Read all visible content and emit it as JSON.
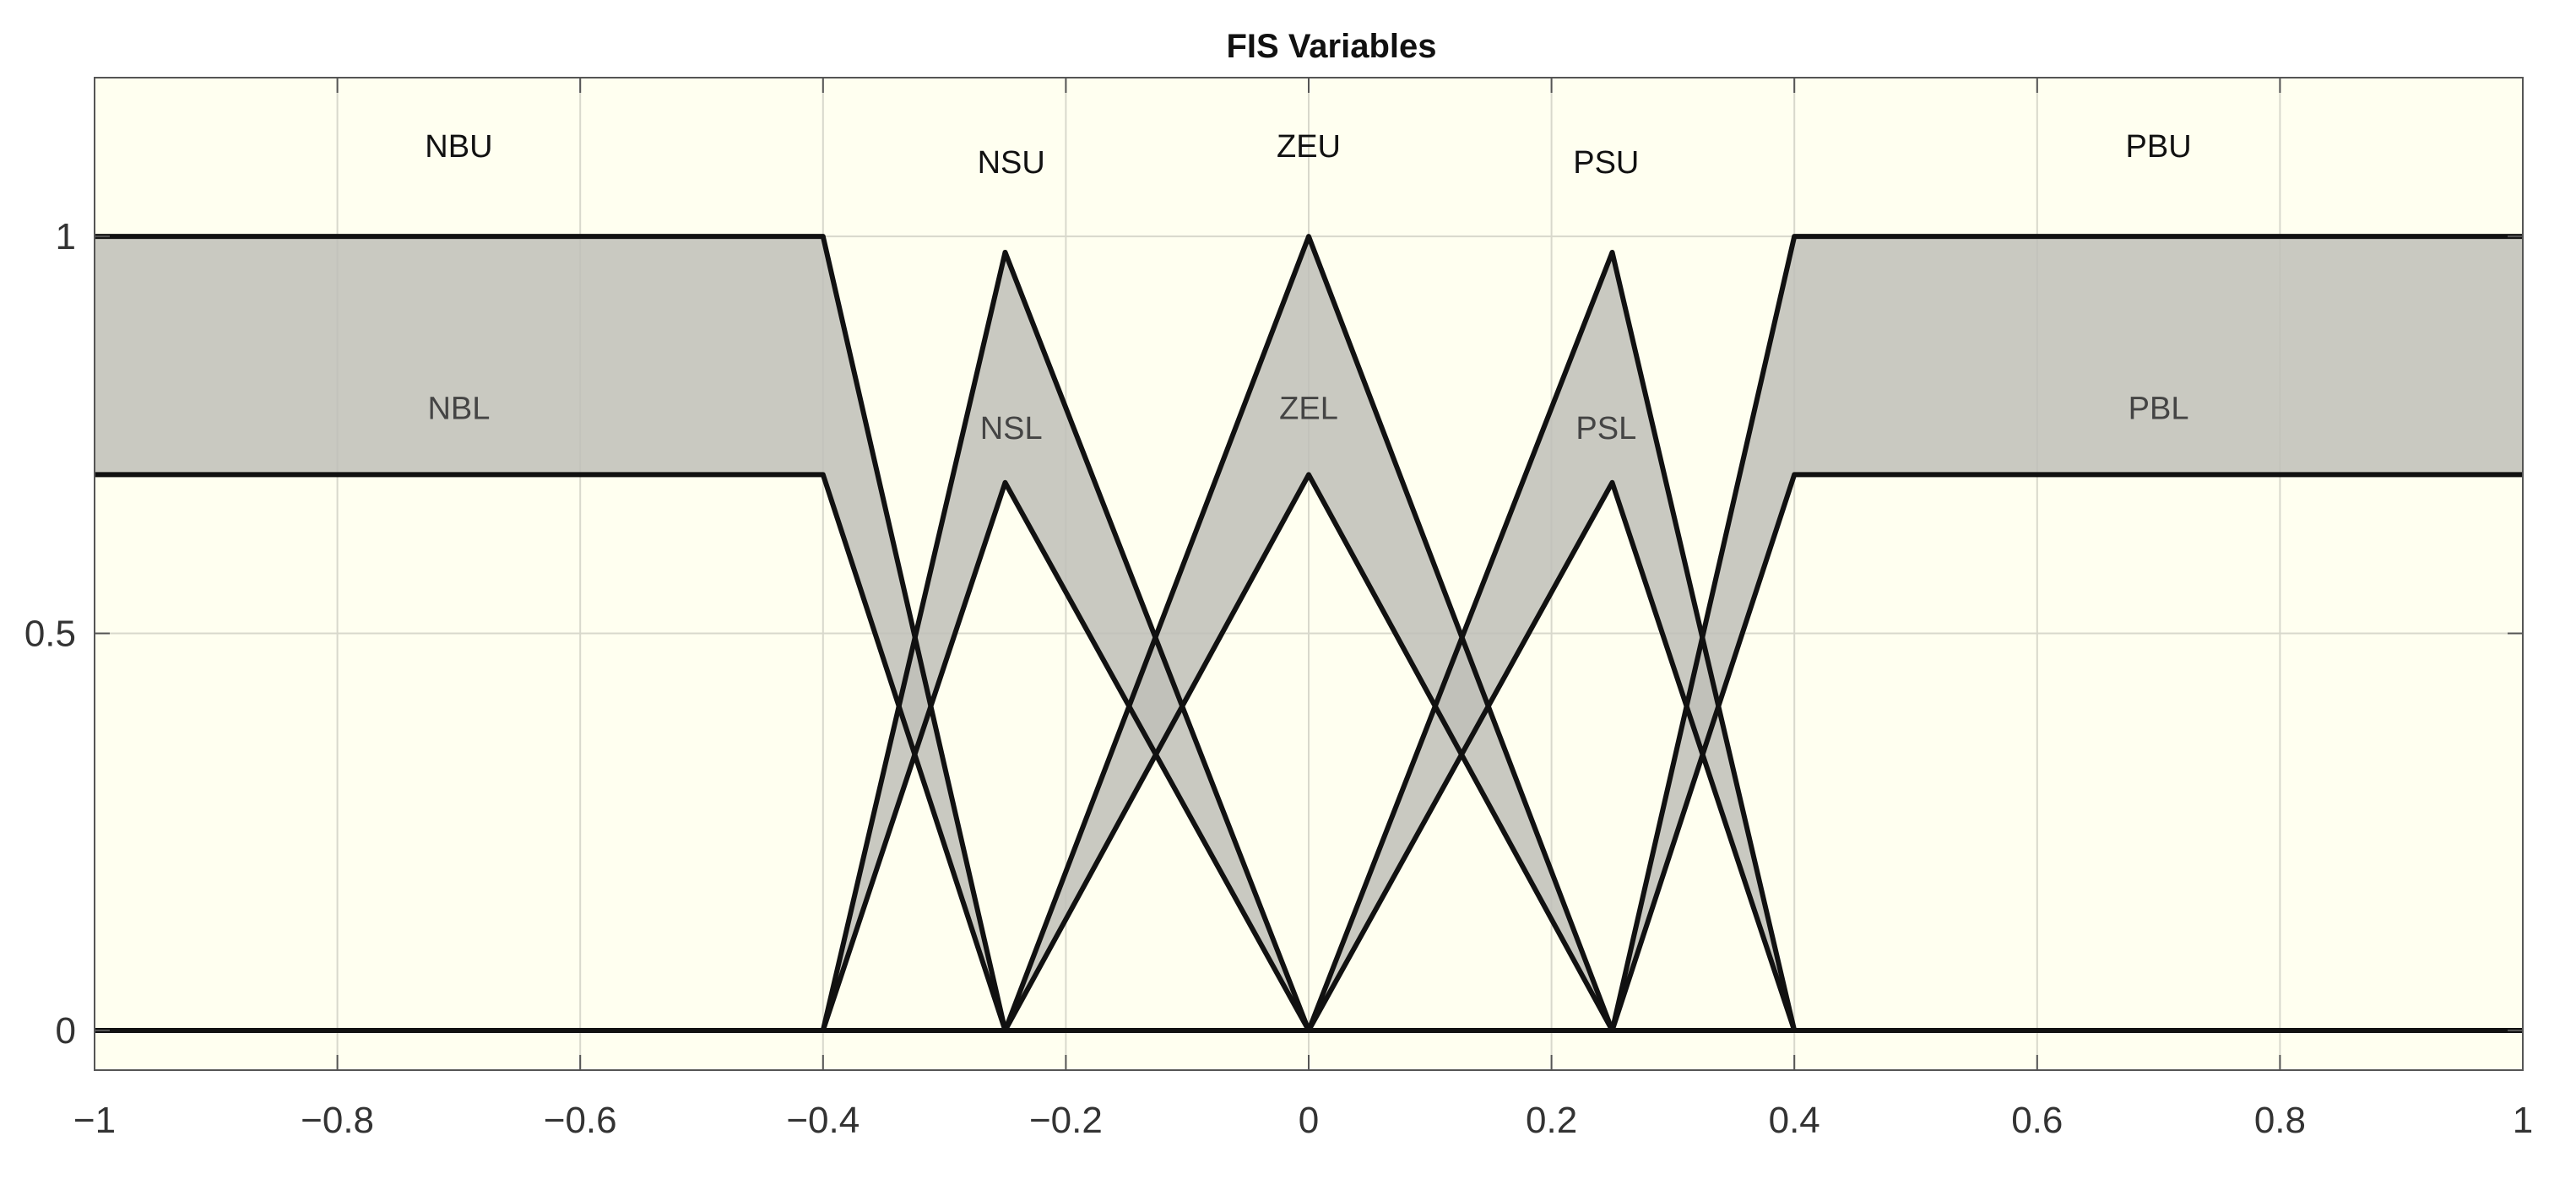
{
  "chart_data": {
    "type": "line",
    "title": "FIS Variables",
    "xlabel": "",
    "ylabel": "",
    "xlim": [
      -1,
      1
    ],
    "ylim": [
      -0.05,
      1.2
    ],
    "grid": true,
    "x_ticks": [
      {
        "value": -1,
        "label": "−1"
      },
      {
        "value": -0.8,
        "label": "−0.8"
      },
      {
        "value": -0.6,
        "label": "−0.6"
      },
      {
        "value": -0.4,
        "label": "−0.4"
      },
      {
        "value": -0.2,
        "label": "−0.2"
      },
      {
        "value": 0,
        "label": "0"
      },
      {
        "value": 0.2,
        "label": "0.2"
      },
      {
        "value": 0.4,
        "label": "0.4"
      },
      {
        "value": 0.6,
        "label": "0.6"
      },
      {
        "value": 0.8,
        "label": "0.8"
      },
      {
        "value": 1,
        "label": "1"
      }
    ],
    "y_ticks": [
      {
        "value": 0,
        "label": "0"
      },
      {
        "value": 0.5,
        "label": "0.5"
      },
      {
        "value": 1,
        "label": "1"
      }
    ],
    "colors": {
      "background": "#fffff0",
      "fill": "#c0c0b8",
      "line": "#111111",
      "grid": "#d8d8cc"
    },
    "series": [
      {
        "upper_label": "NBU",
        "lower_label": "NBL",
        "upper": [
          [
            -1,
            1
          ],
          [
            -0.4,
            1
          ],
          [
            -0.25,
            0
          ]
        ],
        "lower": [
          [
            -1,
            0.7
          ],
          [
            -0.4,
            0.7
          ],
          [
            -0.25,
            0
          ]
        ],
        "upper_label_pos": [
          -0.7,
          1.1
        ],
        "lower_label_pos": [
          -0.7,
          0.77
        ]
      },
      {
        "upper_label": "NSU",
        "lower_label": "NSL",
        "upper": [
          [
            -0.4,
            0
          ],
          [
            -0.25,
            0.98
          ],
          [
            0,
            0
          ]
        ],
        "lower": [
          [
            -0.4,
            0
          ],
          [
            -0.25,
            0.69
          ],
          [
            0,
            0
          ]
        ],
        "upper_label_pos": [
          -0.245,
          1.08
        ],
        "lower_label_pos": [
          -0.245,
          0.745
        ]
      },
      {
        "upper_label": "ZEU",
        "lower_label": "ZEL",
        "upper": [
          [
            -0.25,
            0
          ],
          [
            0,
            1
          ],
          [
            0.25,
            0
          ]
        ],
        "lower": [
          [
            -0.25,
            0
          ],
          [
            0,
            0.7
          ],
          [
            0.25,
            0
          ]
        ],
        "upper_label_pos": [
          0,
          1.1
        ],
        "lower_label_pos": [
          0,
          0.77
        ]
      },
      {
        "upper_label": "PSU",
        "lower_label": "PSL",
        "upper": [
          [
            0,
            0
          ],
          [
            0.25,
            0.98
          ],
          [
            0.4,
            0
          ]
        ],
        "lower": [
          [
            0,
            0
          ],
          [
            0.25,
            0.69
          ],
          [
            0.4,
            0
          ]
        ],
        "upper_label_pos": [
          0.245,
          1.08
        ],
        "lower_label_pos": [
          0.245,
          0.745
        ]
      },
      {
        "upper_label": "PBU",
        "lower_label": "PBL",
        "upper": [
          [
            0.25,
            0
          ],
          [
            0.4,
            1
          ],
          [
            1,
            1
          ]
        ],
        "lower": [
          [
            0.25,
            0
          ],
          [
            0.4,
            0.7
          ],
          [
            1,
            0.7
          ]
        ],
        "upper_label_pos": [
          0.7,
          1.1
        ],
        "lower_label_pos": [
          0.7,
          0.77
        ]
      }
    ]
  }
}
